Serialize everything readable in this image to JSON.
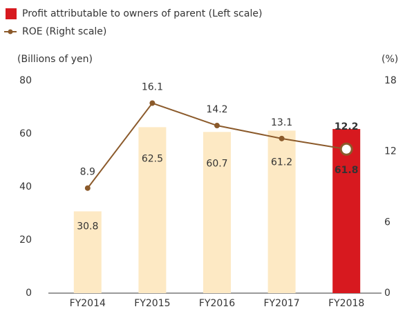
{
  "chart_data": {
    "type": "bar-line",
    "y_label": "(Billions of yen)",
    "y2_label": "(%)",
    "categories": [
      "FY2014",
      "FY2015",
      "FY2016",
      "FY2017",
      "FY2018"
    ],
    "series": [
      {
        "name": "Profit attributable to owners of parent (Left scale)",
        "type": "bar",
        "color": "#d7191f",
        "colors": [
          "#fde9c4",
          "#fde9c4",
          "#fde9c4",
          "#fde9c4",
          "#d7191f"
        ],
        "values": [
          30.8,
          62.5,
          60.7,
          61.2,
          61.8
        ]
      },
      {
        "name": "ROE (Right scale)",
        "type": "line",
        "axis": "y2",
        "color": "#8b5a2b",
        "values": [
          8.9,
          16.1,
          14.2,
          13.1,
          12.2
        ]
      }
    ],
    "ylim": [
      0,
      80
    ],
    "yticks": [
      0,
      20,
      40,
      60,
      80
    ],
    "y2lim": [
      0,
      18
    ],
    "y2ticks": [
      0,
      6,
      12,
      18
    ]
  }
}
